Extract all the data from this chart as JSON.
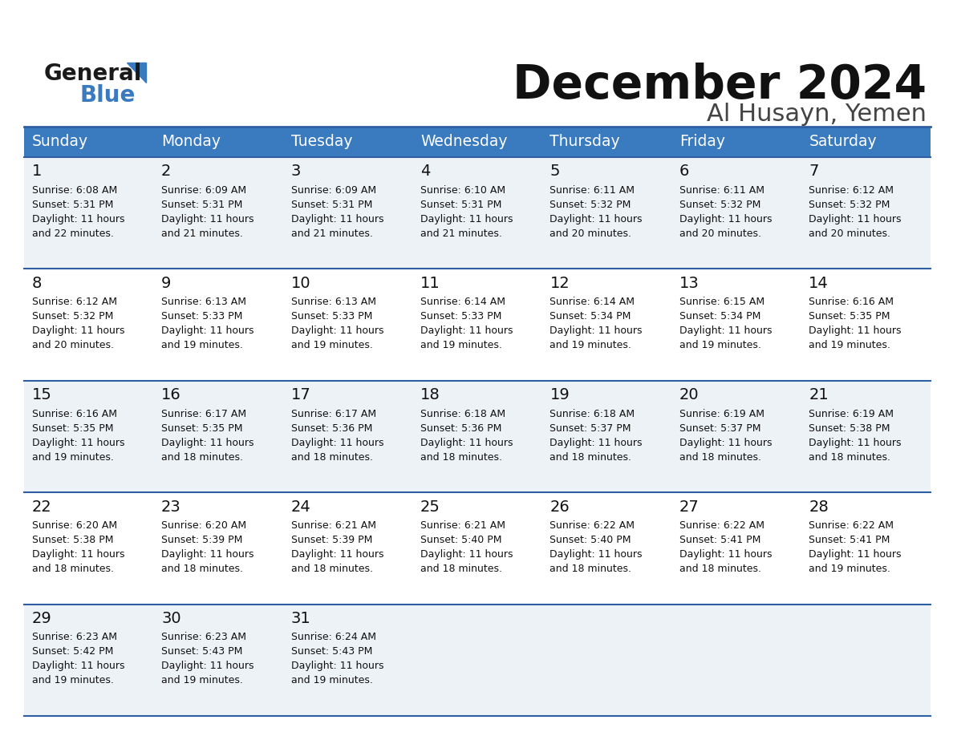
{
  "title": "December 2024",
  "subtitle": "Al Husayn, Yemen",
  "header_color": "#3a7abf",
  "header_text_color": "#ffffff",
  "days_of_week": [
    "Sunday",
    "Monday",
    "Tuesday",
    "Wednesday",
    "Thursday",
    "Friday",
    "Saturday"
  ],
  "weeks": [
    [
      {
        "day": 1,
        "sunrise": "6:08 AM",
        "sunset": "5:31 PM",
        "daylight_extra": "22 minutes."
      },
      {
        "day": 2,
        "sunrise": "6:09 AM",
        "sunset": "5:31 PM",
        "daylight_extra": "21 minutes."
      },
      {
        "day": 3,
        "sunrise": "6:09 AM",
        "sunset": "5:31 PM",
        "daylight_extra": "21 minutes."
      },
      {
        "day": 4,
        "sunrise": "6:10 AM",
        "sunset": "5:31 PM",
        "daylight_extra": "21 minutes."
      },
      {
        "day": 5,
        "sunrise": "6:11 AM",
        "sunset": "5:32 PM",
        "daylight_extra": "20 minutes."
      },
      {
        "day": 6,
        "sunrise": "6:11 AM",
        "sunset": "5:32 PM",
        "daylight_extra": "20 minutes."
      },
      {
        "day": 7,
        "sunrise": "6:12 AM",
        "sunset": "5:32 PM",
        "daylight_extra": "20 minutes."
      }
    ],
    [
      {
        "day": 8,
        "sunrise": "6:12 AM",
        "sunset": "5:32 PM",
        "daylight_extra": "20 minutes."
      },
      {
        "day": 9,
        "sunrise": "6:13 AM",
        "sunset": "5:33 PM",
        "daylight_extra": "19 minutes."
      },
      {
        "day": 10,
        "sunrise": "6:13 AM",
        "sunset": "5:33 PM",
        "daylight_extra": "19 minutes."
      },
      {
        "day": 11,
        "sunrise": "6:14 AM",
        "sunset": "5:33 PM",
        "daylight_extra": "19 minutes."
      },
      {
        "day": 12,
        "sunrise": "6:14 AM",
        "sunset": "5:34 PM",
        "daylight_extra": "19 minutes."
      },
      {
        "day": 13,
        "sunrise": "6:15 AM",
        "sunset": "5:34 PM",
        "daylight_extra": "19 minutes."
      },
      {
        "day": 14,
        "sunrise": "6:16 AM",
        "sunset": "5:35 PM",
        "daylight_extra": "19 minutes."
      }
    ],
    [
      {
        "day": 15,
        "sunrise": "6:16 AM",
        "sunset": "5:35 PM",
        "daylight_extra": "19 minutes."
      },
      {
        "day": 16,
        "sunrise": "6:17 AM",
        "sunset": "5:35 PM",
        "daylight_extra": "18 minutes."
      },
      {
        "day": 17,
        "sunrise": "6:17 AM",
        "sunset": "5:36 PM",
        "daylight_extra": "18 minutes."
      },
      {
        "day": 18,
        "sunrise": "6:18 AM",
        "sunset": "5:36 PM",
        "daylight_extra": "18 minutes."
      },
      {
        "day": 19,
        "sunrise": "6:18 AM",
        "sunset": "5:37 PM",
        "daylight_extra": "18 minutes."
      },
      {
        "day": 20,
        "sunrise": "6:19 AM",
        "sunset": "5:37 PM",
        "daylight_extra": "18 minutes."
      },
      {
        "day": 21,
        "sunrise": "6:19 AM",
        "sunset": "5:38 PM",
        "daylight_extra": "18 minutes."
      }
    ],
    [
      {
        "day": 22,
        "sunrise": "6:20 AM",
        "sunset": "5:38 PM",
        "daylight_extra": "18 minutes."
      },
      {
        "day": 23,
        "sunrise": "6:20 AM",
        "sunset": "5:39 PM",
        "daylight_extra": "18 minutes."
      },
      {
        "day": 24,
        "sunrise": "6:21 AM",
        "sunset": "5:39 PM",
        "daylight_extra": "18 minutes."
      },
      {
        "day": 25,
        "sunrise": "6:21 AM",
        "sunset": "5:40 PM",
        "daylight_extra": "18 minutes."
      },
      {
        "day": 26,
        "sunrise": "6:22 AM",
        "sunset": "5:40 PM",
        "daylight_extra": "18 minutes."
      },
      {
        "day": 27,
        "sunrise": "6:22 AM",
        "sunset": "5:41 PM",
        "daylight_extra": "18 minutes."
      },
      {
        "day": 28,
        "sunrise": "6:22 AM",
        "sunset": "5:41 PM",
        "daylight_extra": "19 minutes."
      }
    ],
    [
      {
        "day": 29,
        "sunrise": "6:23 AM",
        "sunset": "5:42 PM",
        "daylight_extra": "19 minutes."
      },
      {
        "day": 30,
        "sunrise": "6:23 AM",
        "sunset": "5:43 PM",
        "daylight_extra": "19 minutes."
      },
      {
        "day": 31,
        "sunrise": "6:24 AM",
        "sunset": "5:43 PM",
        "daylight_extra": "19 minutes."
      },
      null,
      null,
      null,
      null
    ]
  ],
  "row_colors": [
    "#edf2f7",
    "#ffffff"
  ],
  "cell_border_color": "#2e5fa3",
  "background_color": "#ffffff",
  "title_color": "#111111",
  "subtitle_color": "#444444",
  "day_num_color": "#111111",
  "cell_text_color": "#111111"
}
